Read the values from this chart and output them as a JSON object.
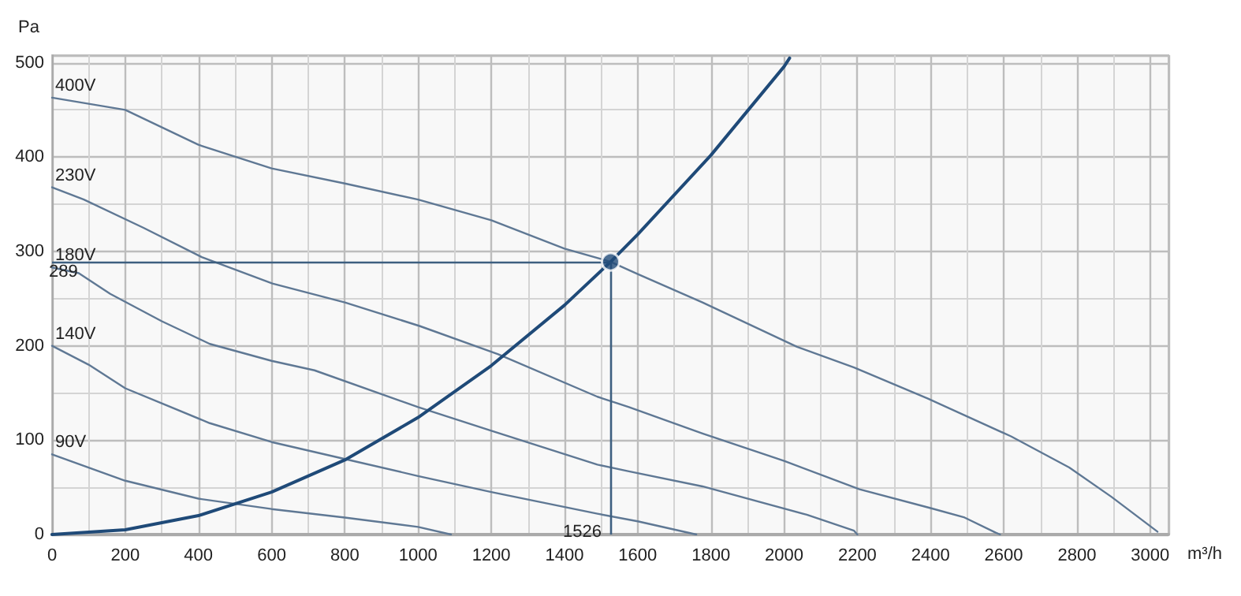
{
  "chart_data": {
    "type": "line",
    "ylabel": "Pa",
    "xlabel": "m³/h",
    "xlim": [
      0,
      3050
    ],
    "ylim": [
      0,
      508
    ],
    "xticks": [
      0,
      200,
      400,
      600,
      800,
      1000,
      1200,
      1400,
      1600,
      1800,
      2000,
      2200,
      2400,
      2600,
      2800,
      3000
    ],
    "yticks": [
      0,
      100,
      200,
      300,
      400,
      500
    ],
    "grid": true,
    "marker": "none",
    "line_style": "solid",
    "series": [
      {
        "name": "400V",
        "color": "#5f7894",
        "x": [
          0,
          200,
          400,
          600,
          800,
          1000,
          1200,
          1400,
          1526,
          1600,
          1777,
          2035,
          2191,
          2393,
          2620,
          2779,
          2894,
          3020
        ],
        "values": [
          463,
          450,
          413,
          388,
          372,
          355,
          333,
          303,
          289,
          276,
          246,
          199,
          177,
          144,
          104,
          71,
          40,
          3
        ]
      },
      {
        "name": "230V",
        "color": "#5f7894",
        "x": [
          0,
          87,
          250,
          409,
          602,
          800,
          1004,
          1219,
          1490,
          1576,
          1777,
          2000,
          2206,
          2400,
          2493,
          2578,
          2590
        ],
        "values": [
          368,
          355,
          325,
          294,
          266,
          246,
          221,
          191,
          146,
          135,
          107,
          78,
          48,
          28,
          18,
          2,
          0
        ]
      },
      {
        "name": "180V",
        "color": "#5f7894",
        "x": [
          0,
          73,
          159,
          300,
          431,
          600,
          717,
          1000,
          1200,
          1490,
          1576,
          1777,
          2062,
          2191,
          2200
        ],
        "values": [
          283,
          277,
          255,
          226,
          202,
          184,
          174,
          135,
          110,
          74,
          67,
          51,
          21,
          4,
          0
        ]
      },
      {
        "name": "140V",
        "color": "#5f7894",
        "x": [
          0,
          100,
          200,
          431,
          600,
          800,
          1000,
          1200,
          1490,
          1600,
          1760
        ],
        "values": [
          200,
          180,
          155,
          118,
          98,
          80,
          62,
          45,
          22,
          14,
          0
        ]
      },
      {
        "name": "90V",
        "color": "#5f7894",
        "x": [
          0,
          200,
          400,
          600,
          800,
          1000,
          1090
        ],
        "values": [
          85,
          57,
          38,
          27,
          18,
          8,
          0
        ]
      },
      {
        "color": "#1f4a78",
        "x": [
          0,
          200,
          400,
          600,
          800,
          1000,
          1200,
          1400,
          1526,
          1600,
          1800,
          2000,
          2015
        ],
        "values": [
          0,
          5,
          20,
          45,
          79,
          124,
          179,
          243,
          289,
          318,
          402,
          496,
          505
        ]
      },
      {
        "type": "scatter",
        "marker": "circle",
        "color": "#1f4a78",
        "x": [
          1526
        ],
        "values": [
          289
        ]
      }
    ],
    "ref_lines": [
      {
        "axis": "y",
        "value": 289,
        "label": "289",
        "color": "#3d5f80"
      },
      {
        "axis": "x",
        "value": 1526,
        "label": "1526",
        "color": "#3d5f80"
      }
    ]
  }
}
